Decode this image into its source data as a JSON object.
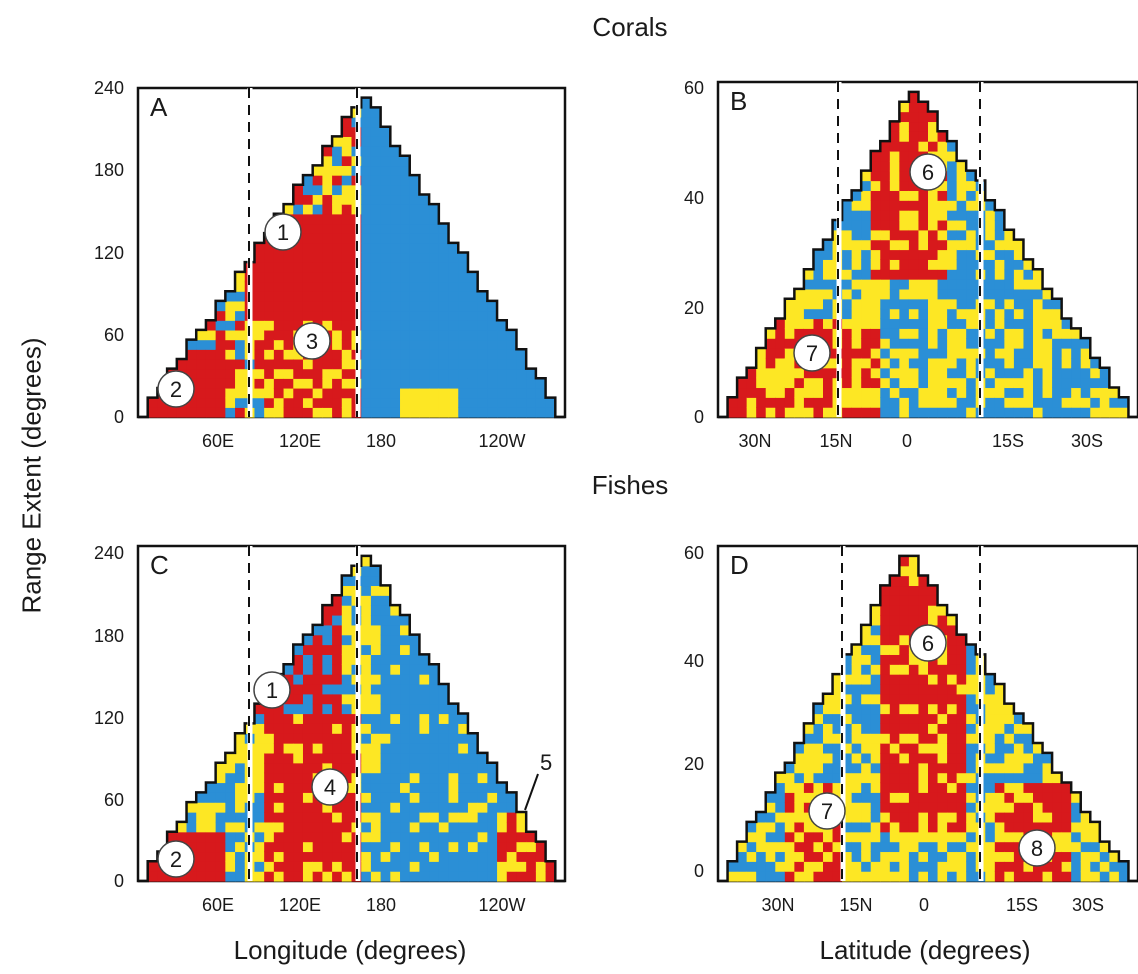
{
  "headers": {
    "corals": "Corals",
    "fishes": "Fishes",
    "y_axis": "Range Extent (degrees)",
    "x_axis_left": "Longitude (degrees)",
    "x_axis_right": "Latitude (degrees)"
  },
  "colors": {
    "red": "#d7191c",
    "yellow": "#fde724",
    "blue": "#2b8fd6",
    "outline": "#111111"
  },
  "chart_data": [
    {
      "type": "heatmap",
      "panel": "A",
      "group": "Corals",
      "x_ticks": [
        "60E",
        "120E",
        "180",
        "120W"
      ],
      "y_ticks": [
        "0",
        "60",
        "120",
        "180",
        "240"
      ],
      "ylim": [
        0,
        240
      ],
      "markers": [
        {
          "label": "1",
          "x": "~100E",
          "y": 135
        },
        {
          "label": "2",
          "x": "~35E",
          "y": 22
        },
        {
          "label": "3",
          "x": "~130E",
          "y": 55
        }
      ],
      "dashed_lines": [
        "~80E",
        "~160E"
      ],
      "color_classes": [
        "red",
        "yellow",
        "blue"
      ]
    },
    {
      "type": "heatmap",
      "panel": "B",
      "group": "Corals",
      "x_ticks": [
        "30N",
        "15N",
        "0",
        "15S",
        "30S"
      ],
      "y_ticks": [
        "0",
        "20",
        "40",
        "60"
      ],
      "ylim": [
        0,
        60
      ],
      "markers": [
        {
          "label": "6",
          "x": "~3S",
          "y": 45
        },
        {
          "label": "7",
          "x": "~22N",
          "y": 10
        }
      ],
      "dashed_lines": [
        "~15N",
        "~13S"
      ],
      "color_classes": [
        "red",
        "yellow",
        "blue"
      ]
    },
    {
      "type": "heatmap",
      "panel": "C",
      "group": "Fishes",
      "x_ticks": [
        "60E",
        "120E",
        "180",
        "120W"
      ],
      "y_ticks": [
        "0",
        "60",
        "120",
        "180",
        "240"
      ],
      "ylim": [
        0,
        240
      ],
      "markers": [
        {
          "label": "1",
          "x": "~100E",
          "y": 138
        },
        {
          "label": "2",
          "x": "~35E",
          "y": 14
        },
        {
          "label": "4",
          "x": "~130E",
          "y": 60
        },
        {
          "label": "5",
          "x": "~95W",
          "y": 38
        }
      ],
      "dashed_lines": [
        "~80E",
        "~165E"
      ],
      "color_classes": [
        "red",
        "yellow",
        "blue"
      ]
    },
    {
      "type": "heatmap",
      "panel": "D",
      "group": "Fishes",
      "x_ticks": [
        "30N",
        "15N",
        "0",
        "15S",
        "30S"
      ],
      "y_ticks": [
        "0",
        "20",
        "40",
        "60"
      ],
      "ylim": [
        0,
        60
      ],
      "markers": [
        {
          "label": "6",
          "x": "~0",
          "y": 45
        },
        {
          "label": "7",
          "x": "~19N",
          "y": 16
        },
        {
          "label": "8",
          "x": "~23S",
          "y": 6
        }
      ],
      "dashed_lines": [
        "~15N",
        "~13S"
      ],
      "color_classes": [
        "red",
        "yellow",
        "blue"
      ]
    }
  ]
}
